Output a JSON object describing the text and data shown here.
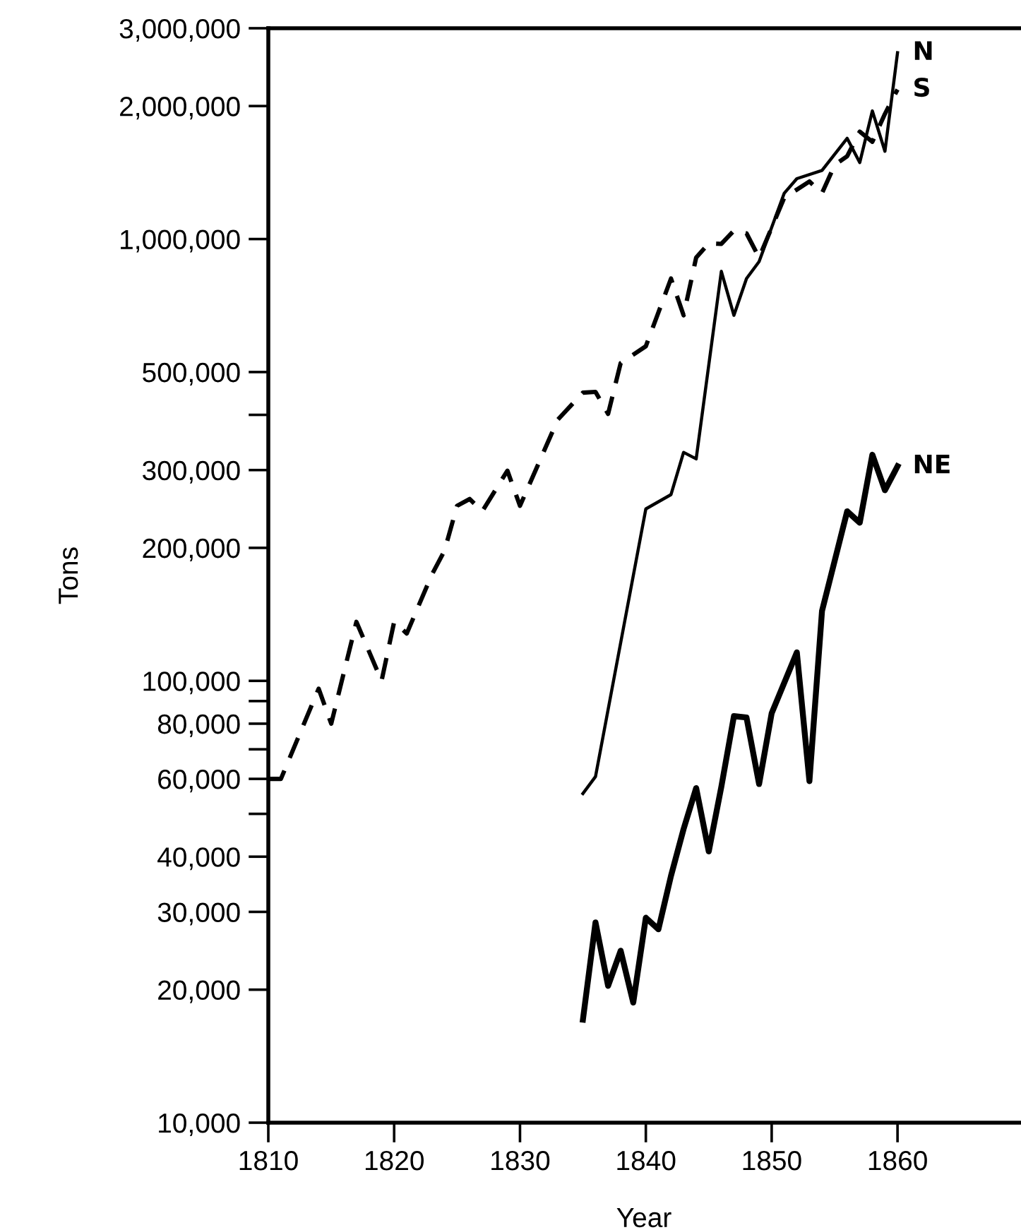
{
  "chart_data": {
    "type": "line",
    "xlabel": "Year",
    "ylabel": "Tons",
    "log": "y",
    "grid": false,
    "legend": false,
    "marker": "none",
    "xlim": [
      1810,
      1869.7
    ],
    "xticks": [
      1810,
      1820,
      1830,
      1840,
      1850,
      1860
    ],
    "ylim": [
      10000,
      3000000
    ],
    "yticks": [
      {
        "value": 10000,
        "label": "10,000"
      },
      {
        "value": 20000,
        "label": "20,000"
      },
      {
        "value": 30000,
        "label": "30,000"
      },
      {
        "value": 40000,
        "label": "40,000"
      },
      {
        "value": 50000,
        "label": null
      },
      {
        "value": 60000,
        "label": "60,000"
      },
      {
        "value": 70000,
        "label": null
      },
      {
        "value": 80000,
        "label": "80,000"
      },
      {
        "value": 90000,
        "label": null
      },
      {
        "value": 100000,
        "label": "100,000"
      },
      {
        "value": 200000,
        "label": "200,000"
      },
      {
        "value": 300000,
        "label": "300,000"
      },
      {
        "value": 400000,
        "label": null
      },
      {
        "value": 500000,
        "label": "500,000"
      },
      {
        "value": 1000000,
        "label": "1,000,000"
      },
      {
        "value": 2000000,
        "label": "2,000,000"
      },
      {
        "value": 3000000,
        "label": "3,000,000"
      }
    ],
    "series": [
      {
        "name": "N",
        "color": "#000000",
        "line_style": "solid",
        "x": [
          1835,
          1836,
          1840,
          1842,
          1843,
          1844,
          1846,
          1847,
          1848,
          1849,
          1851,
          1852,
          1854,
          1856,
          1857,
          1858,
          1859,
          1860
        ],
        "values": [
          55600,
          60700,
          245000,
          264000,
          329000,
          318000,
          845000,
          672000,
          814000,
          889000,
          1270000,
          1370000,
          1430000,
          1690000,
          1490000,
          1950000,
          1580000,
          2640000
        ]
      },
      {
        "name": "S",
        "color": "#000000",
        "line_style": "dashed",
        "x": [
          1810,
          1811,
          1814,
          1815,
          1817,
          1819,
          1820,
          1821,
          1823,
          1824,
          1825,
          1826,
          1827,
          1829,
          1830,
          1833,
          1835,
          1836,
          1837,
          1838,
          1840,
          1842,
          1843,
          1844,
          1845,
          1846,
          1847,
          1848,
          1849,
          1851,
          1853,
          1854,
          1855,
          1856,
          1857,
          1858,
          1859,
          1860
        ],
        "values": [
          60000,
          60000,
          96000,
          80000,
          136000,
          100000,
          136000,
          128000,
          174000,
          197000,
          249000,
          258000,
          242000,
          299000,
          249000,
          390000,
          449000,
          451000,
          402000,
          524000,
          572000,
          814000,
          672000,
          908000,
          978000,
          975000,
          1045000,
          1030000,
          908000,
          1240000,
          1350000,
          1270000,
          1470000,
          1540000,
          1750000,
          1660000,
          1920000,
          2180000
        ]
      },
      {
        "name": "NE",
        "color": "#000000",
        "line_style": "solid",
        "x": [
          1835,
          1836,
          1837,
          1838,
          1839,
          1840,
          1841,
          1842,
          1843,
          1844,
          1845,
          1846,
          1847,
          1848,
          1849,
          1850,
          1852,
          1853,
          1854,
          1856,
          1857,
          1858,
          1859,
          1860
        ],
        "values": [
          17100,
          28400,
          20400,
          24500,
          18700,
          29100,
          27400,
          36200,
          46200,
          57200,
          41100,
          57600,
          83200,
          82600,
          58400,
          84500,
          116000,
          59300,
          144000,
          242000,
          228000,
          325000,
          270000,
          306000
        ]
      }
    ]
  }
}
